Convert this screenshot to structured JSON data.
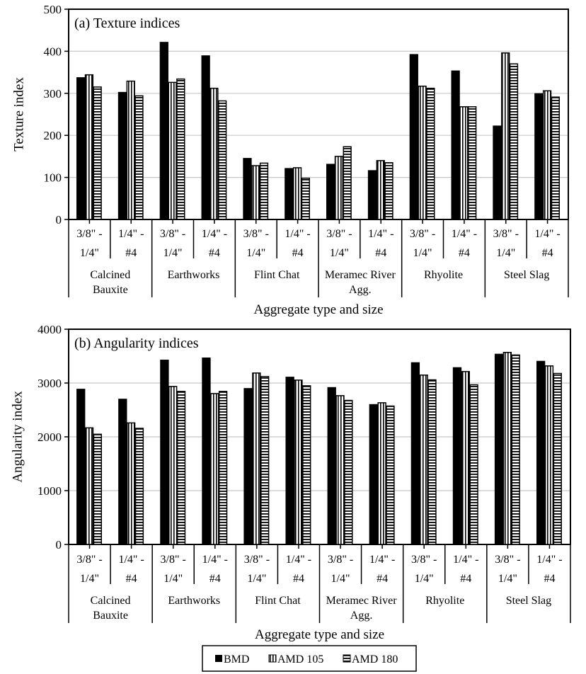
{
  "chart_data": [
    {
      "type": "bar",
      "title": "(a) Texture indices",
      "ylabel": "Texture index",
      "xlabel": "Aggregate type and size",
      "ylim": [
        0,
        500
      ],
      "yticks": [
        0,
        100,
        200,
        300,
        400,
        500
      ],
      "grid": true,
      "groups": [
        "Calcined Bauxite",
        "Earthworks",
        "Flint Chat",
        "Meramec River Agg.",
        "Rhyolite",
        "Steel Slag"
      ],
      "sizes": [
        [
          "3/8\" -",
          "1/4\""
        ],
        [
          "1/4\" -",
          "#4"
        ]
      ],
      "categories": [
        "CB 3/8\"-1/4\"",
        "CB 1/4\"-#4",
        "EW 3/8\"-1/4\"",
        "EW 1/4\"-#4",
        "FC 3/8\"-1/4\"",
        "FC 1/4\"-#4",
        "MR 3/8\"-1/4\"",
        "MR 1/4\"-#4",
        "Rh 3/8\"-1/4\"",
        "Rh 1/4\"-#4",
        "SS 3/8\"-1/4\"",
        "SS 1/4\"-#4"
      ],
      "series": [
        {
          "name": "BMD",
          "values": [
            337,
            302,
            421,
            389,
            145,
            121,
            131,
            116,
            392,
            353,
            222,
            299
          ]
        },
        {
          "name": "AMD 105",
          "values": [
            344,
            329,
            326,
            312,
            128,
            123,
            150,
            140,
            317,
            268,
            396,
            306
          ]
        },
        {
          "name": "AMD 180",
          "values": [
            315,
            294,
            334,
            282,
            134,
            98,
            173,
            135,
            312,
            268,
            370,
            291
          ]
        }
      ]
    },
    {
      "type": "bar",
      "title": "(b) Angularity indices",
      "ylabel": "Angularity index",
      "xlabel": "Aggregate type and size",
      "ylim": [
        0,
        4000
      ],
      "yticks": [
        0,
        1000,
        2000,
        3000,
        4000
      ],
      "grid": true,
      "groups": [
        "Calcined Bauxite",
        "Earthworks",
        "Flint Chat",
        "Meramec River Agg.",
        "Rhyolite",
        "Steel Slag"
      ],
      "sizes": [
        [
          "3/8\" -",
          "1/4\""
        ],
        [
          "1/4\" -",
          "#4"
        ]
      ],
      "categories": [
        "CB 3/8\"-1/4\"",
        "CB 1/4\"-#4",
        "EW 3/8\"-1/4\"",
        "EW 1/4\"-#4",
        "FC 3/8\"-1/4\"",
        "FC 1/4\"-#4",
        "MR 3/8\"-1/4\"",
        "MR 1/4\"-#4",
        "Rh 3/8\"-1/4\"",
        "Rh 1/4\"-#4",
        "SS 3/8\"-1/4\"",
        "SS 1/4\"-#4"
      ],
      "series": [
        {
          "name": "BMD",
          "values": [
            2883,
            2698,
            3424,
            3464,
            2896,
            3107,
            2914,
            2598,
            3376,
            3284,
            3534,
            3402
          ]
        },
        {
          "name": "AMD 105",
          "values": [
            2167,
            2259,
            2936,
            2804,
            3186,
            3054,
            2765,
            2633,
            3147,
            3213,
            3569,
            3318
          ]
        },
        {
          "name": "AMD 180",
          "values": [
            2048,
            2158,
            2844,
            2844,
            3120,
            2949,
            2677,
            2572,
            3059,
            2967,
            3521,
            3178
          ]
        }
      ]
    }
  ],
  "legend": {
    "placement": "bottom",
    "items": [
      "BMD",
      "AMD 105",
      "AMD 180"
    ]
  }
}
